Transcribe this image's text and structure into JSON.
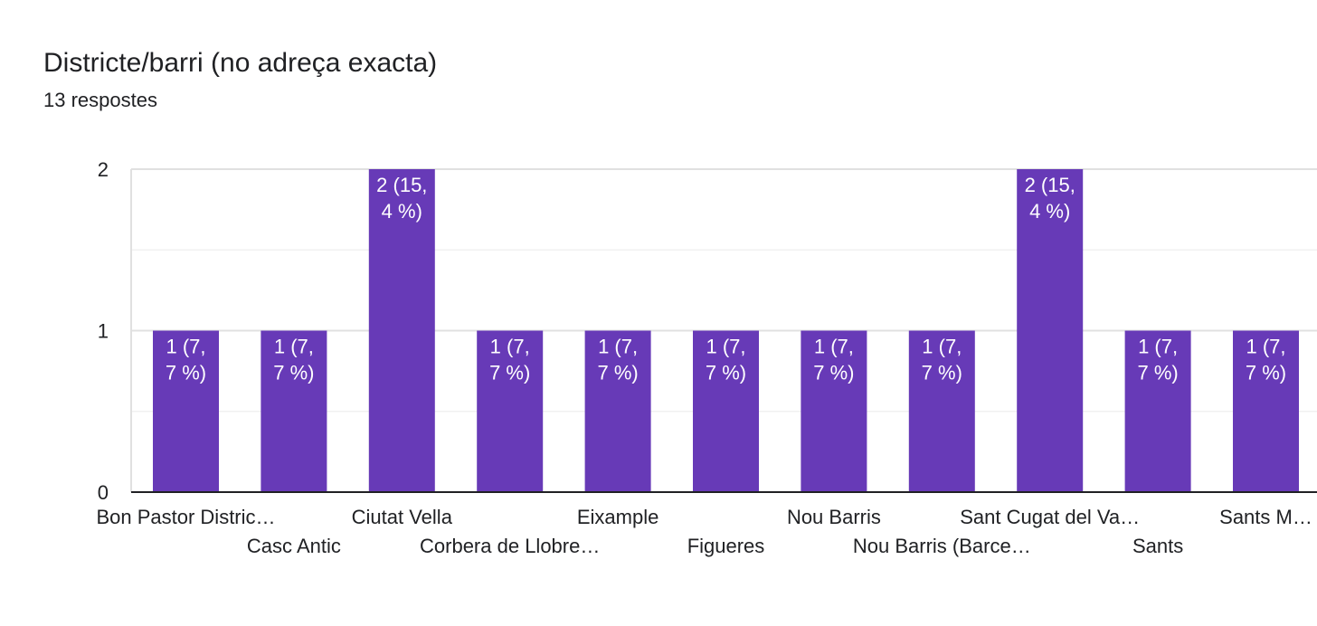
{
  "header": {
    "title": "Districte/barri (no adreça exacta)",
    "subtitle": "13 respostes"
  },
  "chart_data": {
    "type": "bar",
    "title": "Districte/barri (no adreça exacta)",
    "subtitle": "13 respostes",
    "categories": [
      "Bon Pastor Distric…",
      "Casc Antic",
      "Ciutat Vella",
      "Corbera de Llobre…",
      "Eixample",
      "Figueres",
      "Nou Barris",
      "Nou Barris (Barce…",
      "Sant Cugat del Va…",
      "Sants",
      "Sants M…"
    ],
    "values": [
      1,
      1,
      2,
      1,
      1,
      1,
      1,
      1,
      2,
      1,
      1
    ],
    "data_labels": [
      [
        "1 (7,",
        "7 %)"
      ],
      [
        "1 (7,",
        "7 %)"
      ],
      [
        "2 (15,",
        "4 %)"
      ],
      [
        "1 (7,",
        "7 %)"
      ],
      [
        "1 (7,",
        "7 %)"
      ],
      [
        "1 (7,",
        "7 %)"
      ],
      [
        "1 (7,",
        "7 %)"
      ],
      [
        "1 (7,",
        "7 %)"
      ],
      [
        "2 (15,",
        "4 %)"
      ],
      [
        "1 (7,",
        "7 %)"
      ],
      [
        "1 (7,",
        "7 %)"
      ]
    ],
    "y_ticks": [
      "0",
      "1",
      "2"
    ],
    "ylim": [
      0,
      2
    ],
    "xlabel": "",
    "ylabel": "",
    "grid": true,
    "bar_color": "#673ab7",
    "label_color": "#ffffff",
    "axis_color": "#202124",
    "gridline_color": "#e0e0e0",
    "minor_gridline_color": "#f1f1f1"
  }
}
